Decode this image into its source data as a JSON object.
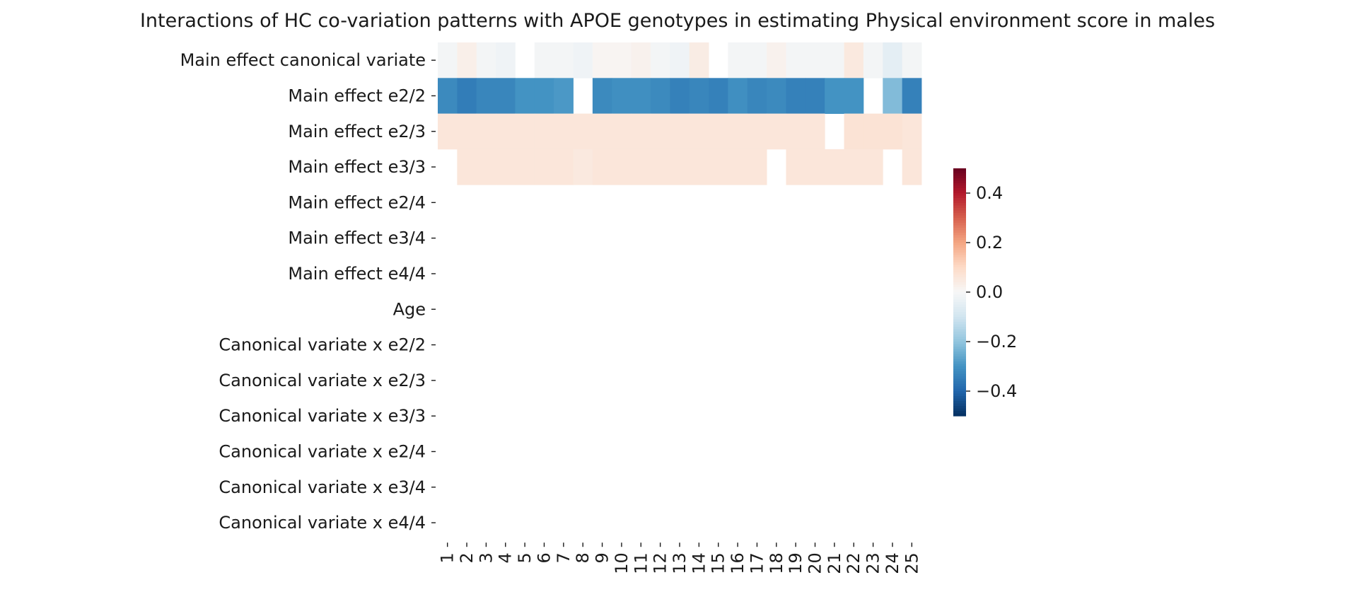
{
  "chart_data": {
    "type": "heatmap",
    "title": "Interactions of HC co-variation patterns with APOE genotypes in estimating Physical environment score in males",
    "xlabel": "",
    "ylabel": "",
    "x_categories": [
      "1",
      "2",
      "3",
      "4",
      "5",
      "6",
      "7",
      "8",
      "9",
      "10",
      "11",
      "12",
      "13",
      "14",
      "15",
      "16",
      "17",
      "18",
      "19",
      "20",
      "21",
      "22",
      "23",
      "24",
      "25"
    ],
    "y_categories": [
      "Main effect canonical variate",
      "Main effect e2/2",
      "Main effect e2/3",
      "Main effect e3/3",
      "Main effect e2/4",
      "Main effect e3/4",
      "Main effect e4/4",
      "Age",
      "Canonical variate x e2/2",
      "Canonical variate x e2/3",
      "Canonical variate x e3/3",
      "Canonical variate x e2/4",
      "Canonical variate x e3/4",
      "Canonical variate x e4/4"
    ],
    "values": [
      [
        -0.01,
        0.03,
        -0.01,
        -0.02,
        null,
        -0.01,
        -0.01,
        -0.02,
        0.01,
        0.01,
        0.02,
        -0.01,
        -0.02,
        0.04,
        null,
        -0.01,
        -0.01,
        0.02,
        -0.01,
        -0.01,
        -0.01,
        0.05,
        -0.01,
        -0.05,
        -0.01
      ],
      [
        -0.32,
        -0.35,
        -0.33,
        -0.33,
        -0.3,
        -0.3,
        -0.29,
        null,
        -0.32,
        -0.31,
        -0.31,
        -0.32,
        -0.34,
        -0.33,
        -0.34,
        -0.31,
        -0.33,
        -0.32,
        -0.34,
        -0.34,
        -0.3,
        -0.3,
        null,
        -0.22,
        -0.34
      ],
      [
        0.06,
        0.06,
        0.06,
        0.06,
        0.06,
        0.06,
        0.06,
        0.06,
        0.06,
        0.06,
        0.06,
        0.06,
        0.06,
        0.06,
        0.06,
        0.06,
        0.06,
        0.06,
        0.06,
        0.06,
        null,
        0.07,
        0.07,
        0.07,
        0.06
      ],
      [
        null,
        0.06,
        0.06,
        0.06,
        0.06,
        0.06,
        0.06,
        0.05,
        0.06,
        0.06,
        0.06,
        0.06,
        0.06,
        0.06,
        0.06,
        0.06,
        0.06,
        null,
        0.06,
        0.06,
        0.06,
        0.06,
        0.06,
        null,
        0.06
      ],
      [
        null,
        null,
        null,
        null,
        null,
        null,
        null,
        null,
        null,
        null,
        null,
        null,
        null,
        null,
        null,
        null,
        null,
        null,
        null,
        null,
        null,
        null,
        null,
        null,
        null
      ],
      [
        null,
        null,
        null,
        null,
        null,
        null,
        null,
        null,
        null,
        null,
        null,
        null,
        null,
        null,
        null,
        null,
        null,
        null,
        null,
        null,
        null,
        null,
        null,
        null,
        null
      ],
      [
        null,
        null,
        null,
        null,
        null,
        null,
        null,
        null,
        null,
        null,
        null,
        null,
        null,
        null,
        null,
        null,
        null,
        null,
        null,
        null,
        null,
        null,
        null,
        null,
        null
      ],
      [
        null,
        null,
        null,
        null,
        null,
        null,
        null,
        null,
        null,
        null,
        null,
        null,
        null,
        null,
        null,
        null,
        null,
        null,
        null,
        null,
        null,
        null,
        null,
        null,
        null
      ],
      [
        null,
        null,
        null,
        null,
        null,
        null,
        null,
        null,
        null,
        null,
        null,
        null,
        null,
        null,
        null,
        null,
        null,
        null,
        null,
        null,
        null,
        null,
        null,
        null,
        null
      ],
      [
        null,
        null,
        null,
        null,
        null,
        null,
        null,
        null,
        null,
        null,
        null,
        null,
        null,
        null,
        null,
        null,
        null,
        null,
        null,
        null,
        null,
        null,
        null,
        null,
        null
      ],
      [
        null,
        null,
        null,
        null,
        null,
        null,
        null,
        null,
        null,
        null,
        null,
        null,
        null,
        null,
        null,
        null,
        null,
        null,
        null,
        null,
        null,
        null,
        null,
        null,
        null
      ],
      [
        null,
        null,
        null,
        null,
        null,
        null,
        null,
        null,
        null,
        null,
        null,
        null,
        null,
        null,
        null,
        null,
        null,
        null,
        null,
        null,
        null,
        null,
        null,
        null,
        null
      ],
      [
        null,
        null,
        null,
        null,
        null,
        null,
        null,
        null,
        null,
        null,
        null,
        null,
        null,
        null,
        null,
        null,
        null,
        null,
        null,
        null,
        null,
        null,
        null,
        null,
        null
      ],
      [
        null,
        null,
        null,
        null,
        null,
        null,
        null,
        null,
        null,
        null,
        null,
        null,
        null,
        null,
        null,
        null,
        null,
        null,
        null,
        null,
        null,
        null,
        null,
        null,
        null
      ]
    ],
    "colorbar": {
      "colormap": "RdBu_r",
      "vmin": -0.5,
      "vmax": 0.5,
      "ticks": [
        0.4,
        0.2,
        0.0,
        -0.2,
        -0.4
      ],
      "tick_labels": [
        "0.4",
        "0.2",
        "0.0",
        "−0.2",
        "−0.4"
      ]
    },
    "grid": false,
    "legend": "colorbar-right"
  }
}
